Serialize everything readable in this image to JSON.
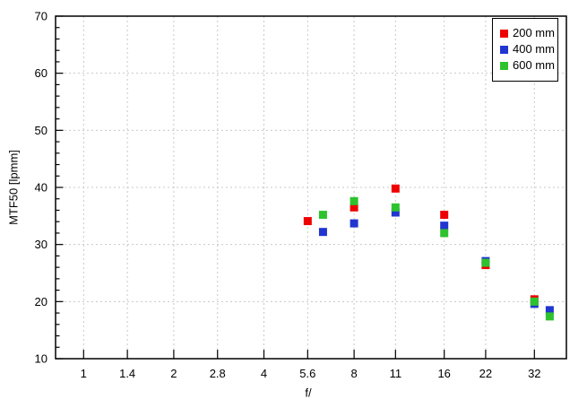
{
  "chart_data": {
    "type": "scatter",
    "title": "",
    "xlabel": "f/",
    "ylabel": "MTF50 [lpmm]",
    "x_axis": {
      "scale": "logarithmic-aperture",
      "ticks": [
        {
          "label": "1",
          "f": 1
        },
        {
          "label": "1.4",
          "f": 1.4
        },
        {
          "label": "2",
          "f": 2
        },
        {
          "label": "2.8",
          "f": 2.8
        },
        {
          "label": "4",
          "f": 4
        },
        {
          "label": "5.6",
          "f": 5.6
        },
        {
          "label": "8",
          "f": 8
        },
        {
          "label": "11",
          "f": 11
        },
        {
          "label": "16",
          "f": 16
        },
        {
          "label": "22",
          "f": 22
        },
        {
          "label": "32",
          "f": 32
        }
      ]
    },
    "y_axis": {
      "min": 10,
      "max": 70,
      "major_step": 10,
      "minor_step": 2
    },
    "ylim": [
      10,
      70
    ],
    "grid": "dashed-at-major-ticks",
    "legend_position": "top-right",
    "marker": "square",
    "series": [
      {
        "name": "200 mm",
        "color": "#ee0000",
        "points": [
          {
            "f": 5.6,
            "mtf50": 34.1
          },
          {
            "f": 8,
            "mtf50": 36.5
          },
          {
            "f": 11,
            "mtf50": 39.8
          },
          {
            "f": 16,
            "mtf50": 35.2
          },
          {
            "f": 22,
            "mtf50": 26.4
          },
          {
            "f": 32,
            "mtf50": 20.4
          }
        ]
      },
      {
        "name": "400 mm",
        "color": "#2135d0",
        "points": [
          {
            "f": 6.3,
            "mtf50": 32.2
          },
          {
            "f": 8,
            "mtf50": 33.7
          },
          {
            "f": 11,
            "mtf50": 35.6
          },
          {
            "f": 16,
            "mtf50": 33.3
          },
          {
            "f": 22,
            "mtf50": 27.1
          },
          {
            "f": 32,
            "mtf50": 19.6
          },
          {
            "f": 36,
            "mtf50": 18.5
          }
        ]
      },
      {
        "name": "600 mm",
        "color": "#2ec22e",
        "points": [
          {
            "f": 6.3,
            "mtf50": 35.2
          },
          {
            "f": 8,
            "mtf50": 37.6
          },
          {
            "f": 11,
            "mtf50": 36.5
          },
          {
            "f": 16,
            "mtf50": 32.0
          },
          {
            "f": 22,
            "mtf50": 26.8
          },
          {
            "f": 32,
            "mtf50": 20.0
          },
          {
            "f": 36,
            "mtf50": 17.4
          }
        ]
      }
    ]
  },
  "colors": {
    "background": "#ffffff",
    "grid": "#c8c8c8",
    "axis": "#000000",
    "text": "#000000"
  }
}
